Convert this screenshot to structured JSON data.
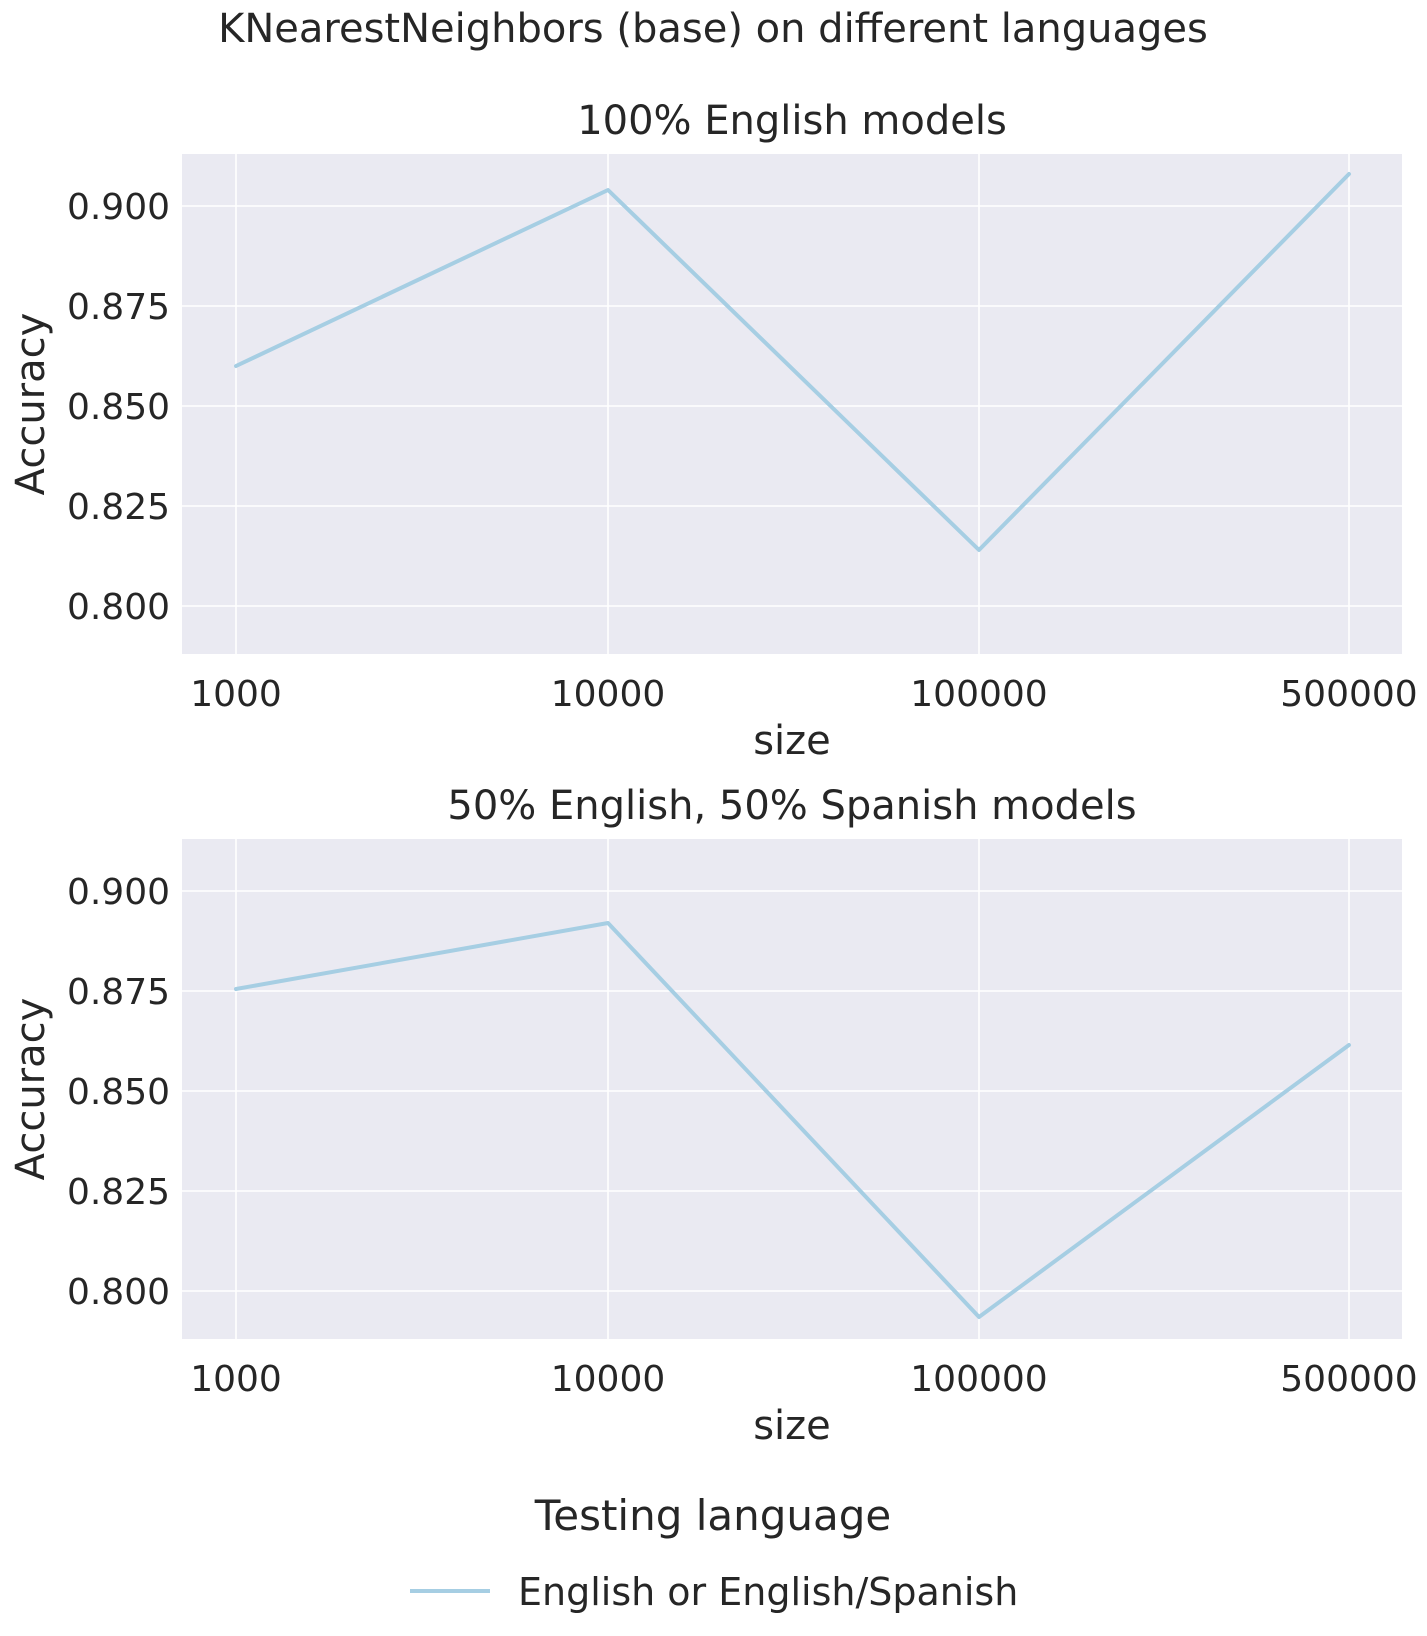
{
  "figure": {
    "suptitle": "KNearestNeighbors (base) on different languages",
    "background": "#ffffff",
    "plot_background": "#eaeaf2",
    "grid_color": "#ffffff",
    "text_color": "#262626"
  },
  "legend": {
    "title": "Testing language",
    "entries": [
      {
        "label": "English or English/Spanish",
        "color": "#a6cee3"
      }
    ],
    "placement": "bottom-center"
  },
  "chart_data": [
    {
      "type": "line",
      "title": "100% English models",
      "xlabel": "size",
      "ylabel": "Accuracy",
      "categories": [
        "1000",
        "10000",
        "100000",
        "500000"
      ],
      "yticks": [
        "0.800",
        "0.825",
        "0.850",
        "0.875",
        "0.900"
      ],
      "ylim": [
        0.788,
        0.913
      ],
      "grid": true,
      "series": [
        {
          "name": "English or English/Spanish",
          "color": "#a6cee3",
          "values": [
            0.86,
            0.904,
            0.814,
            0.908
          ]
        }
      ]
    },
    {
      "type": "line",
      "title": "50% English, 50% Spanish models",
      "xlabel": "size",
      "ylabel": "Accuracy",
      "categories": [
        "1000",
        "10000",
        "100000",
        "500000"
      ],
      "yticks": [
        "0.800",
        "0.825",
        "0.850",
        "0.875",
        "0.900"
      ],
      "ylim": [
        0.788,
        0.913
      ],
      "grid": true,
      "series": [
        {
          "name": "English or English/Spanish",
          "color": "#a6cee3",
          "values": [
            0.8755,
            0.892,
            0.7935,
            0.8615
          ]
        }
      ]
    }
  ]
}
